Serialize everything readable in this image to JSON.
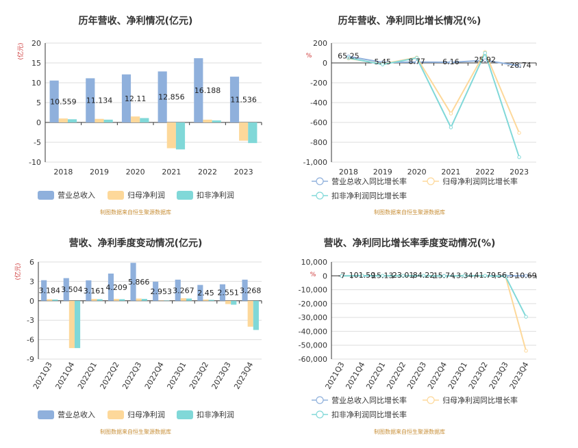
{
  "charts": [
    {
      "type": "bar",
      "title": "历年营收、净利情况(亿元)",
      "unit": "(亿元)",
      "categories": [
        "2018",
        "2019",
        "2020",
        "2021",
        "2022",
        "2023"
      ],
      "ylim": [
        -10,
        20
      ],
      "yticks": [
        -10,
        -5,
        0,
        5,
        10,
        15,
        20
      ],
      "series": [
        {
          "name": "营业总收入",
          "values": [
            10.559,
            11.134,
            12.11,
            12.856,
            16.188,
            11.536
          ],
          "labels": [
            "10.559",
            "11.134",
            "12.11",
            "12.856",
            "16.188",
            "11.536"
          ]
        },
        {
          "name": "归母净利润",
          "values": [
            1.0,
            0.9,
            1.5,
            -6.5,
            0.7,
            -4.6
          ]
        },
        {
          "name": "扣非净利润",
          "values": [
            0.8,
            0.7,
            1.1,
            -6.8,
            0.5,
            -5.2
          ]
        }
      ],
      "colors": [
        "#8fb0dc",
        "#fdd89a",
        "#80d8d8"
      ],
      "source": "制图数据来自恒生聚源数据库"
    },
    {
      "type": "line",
      "title": "历年营收、净利同比增长情况(%)",
      "unit": "%",
      "categories": [
        "2018",
        "2019",
        "2020",
        "2021",
        "2022",
        "2023"
      ],
      "ylim": [
        -1000,
        200
      ],
      "yticks": [
        -1000,
        -800,
        -600,
        -400,
        -200,
        0,
        200
      ],
      "ytick_labels": [
        "-1,000",
        "-800",
        "-600",
        "-400",
        "-200",
        "0",
        "200"
      ],
      "series": [
        {
          "name": "营业总收入同比增长率",
          "values": [
            65.25,
            5.45,
            8.77,
            6.16,
            25.92,
            -28.74
          ],
          "labels": [
            "65.25",
            "5.45",
            "8.77",
            "6.16",
            "25.92",
            "-28.74"
          ]
        },
        {
          "name": "归母净利润同比增长率",
          "values": [
            45,
            -10,
            55,
            -510,
            110,
            -705
          ]
        },
        {
          "name": "扣非净利润同比增长率",
          "values": [
            50,
            -15,
            50,
            -650,
            100,
            -950
          ]
        }
      ],
      "colors": [
        "#8fb0dc",
        "#fdd89a",
        "#80d8d8"
      ],
      "source": "制图数据来自恒生聚源数据库"
    },
    {
      "type": "bar",
      "title": "营收、净利季度变动情况(亿元)",
      "unit": "(亿元)",
      "categories": [
        "2021Q3",
        "2021Q4",
        "2022Q1",
        "2022Q2",
        "2022Q3",
        "2022Q4",
        "2023Q1",
        "2023Q2",
        "2023Q3",
        "2023Q4"
      ],
      "ylim": [
        -9,
        6
      ],
      "yticks": [
        -9,
        -6,
        -3,
        0,
        3,
        6
      ],
      "series": [
        {
          "name": "营业总收入",
          "values": [
            3.184,
            3.504,
            3.161,
            4.209,
            5.866,
            2.953,
            3.267,
            2.45,
            2.551,
            3.268
          ],
          "labels": [
            "3.184",
            "3.504",
            "3.161",
            "4.209",
            "5.866",
            "2.953",
            "3.267",
            "2.45",
            "2.551",
            "3.268"
          ]
        },
        {
          "name": "归母净利润",
          "values": [
            0.25,
            -7.3,
            0.3,
            0.3,
            0.35,
            0.05,
            0.4,
            0.2,
            -0.5,
            -4.0
          ]
        },
        {
          "name": "扣非净利润",
          "values": [
            0.2,
            -7.3,
            0.25,
            0.25,
            0.3,
            0.03,
            0.35,
            0.15,
            -0.6,
            -4.5
          ]
        }
      ],
      "colors": [
        "#8fb0dc",
        "#fdd89a",
        "#80d8d8"
      ],
      "source": "制图数据来自恒生聚源数据库"
    },
    {
      "type": "line",
      "title": "营收、净利同比增长率季度变动情况(%)",
      "unit": "%",
      "categories": [
        "2021Q3",
        "2021Q4",
        "2022Q1",
        "2022Q2",
        "2022Q3",
        "2022Q4",
        "2023Q1",
        "2023Q2",
        "2023Q3",
        "2023Q4"
      ],
      "ylim": [
        -60000,
        10000
      ],
      "yticks": [
        -60000,
        -50000,
        -40000,
        -30000,
        -20000,
        -10000,
        0,
        10000
      ],
      "ytick_labels": [
        "-60,000",
        "-50,000",
        "-40,000",
        "-30,000",
        "-20,000",
        "-10,000",
        "0",
        "10,000"
      ],
      "series": [
        {
          "name": "营业总收入同比增长率",
          "values": [
            -7,
            101.59,
            15.13,
            23.01,
            84.22,
            15.74,
            3.34,
            41.79,
            56.5,
            10.69
          ],
          "labels": [
            "-7",
            "101.59",
            "15.13",
            "23.01",
            "84.22",
            "15.74",
            "3.34",
            "41.79",
            "56.5",
            "10.69"
          ]
        },
        {
          "name": "归母净利润同比增长率",
          "values": [
            -50,
            200,
            50,
            30,
            120,
            -100,
            60,
            40,
            -300,
            -54000
          ]
        },
        {
          "name": "扣非净利润同比增长率",
          "values": [
            -80,
            150,
            40,
            20,
            100,
            -150,
            50,
            30,
            -400,
            -29500
          ]
        }
      ],
      "colors": [
        "#8fb0dc",
        "#fdd89a",
        "#80d8d8"
      ],
      "source": "制图数据来自恒生聚源数据库"
    }
  ]
}
